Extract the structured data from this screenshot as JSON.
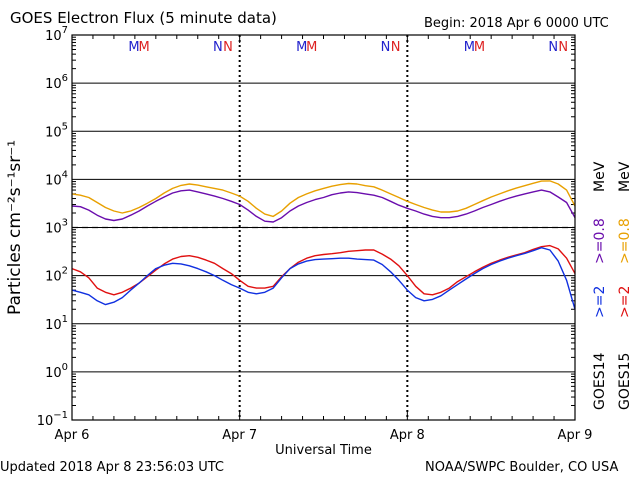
{
  "header": {
    "title": "GOES Electron Flux (5 minute data)",
    "begin": "Begin: 2018 Apr 6 0000 UTC"
  },
  "footer": {
    "updated": "Updated 2018 Apr  8 23:56:03 UTC",
    "credit": "NOAA/SWPC Boulder, CO USA"
  },
  "chart_data": {
    "type": "line",
    "xlabel": "Universal Time",
    "ylabel": "Particles cm⁻²s⁻¹sr⁻¹",
    "yscale": "log",
    "ylim": [
      0.1,
      10000000
    ],
    "xlim": [
      0,
      3
    ],
    "x_ticks": [
      {
        "x": 0,
        "label": "Apr 6"
      },
      {
        "x": 1,
        "label": "Apr 7"
      },
      {
        "x": 2,
        "label": "Apr 8"
      },
      {
        "x": 3,
        "label": "Apr 9"
      }
    ],
    "y_ticks": [
      {
        "exp": 7,
        "base": "10",
        "sup": "7"
      },
      {
        "exp": 6,
        "base": "10",
        "sup": "6"
      },
      {
        "exp": 5,
        "base": "10",
        "sup": "5"
      },
      {
        "exp": 4,
        "base": "10",
        "sup": "4"
      },
      {
        "exp": 3,
        "base": "10",
        "sup": "3"
      },
      {
        "exp": 2,
        "base": "10",
        "sup": "2"
      },
      {
        "exp": 1,
        "base": "10",
        "sup": "1"
      },
      {
        "exp": 0,
        "base": "10",
        "sup": "0"
      },
      {
        "exp": -1,
        "base": "10",
        "sup": "−1"
      }
    ],
    "threshold": 1000,
    "grid": true,
    "markers": [
      {
        "x": 0.37,
        "label": "M",
        "color": "#2222cc"
      },
      {
        "x": 0.43,
        "label": "M",
        "color": "#dd2222"
      },
      {
        "x": 0.87,
        "label": "N",
        "color": "#2222cc"
      },
      {
        "x": 0.93,
        "label": "N",
        "color": "#dd2222"
      },
      {
        "x": 1.37,
        "label": "M",
        "color": "#2222cc"
      },
      {
        "x": 1.43,
        "label": "M",
        "color": "#dd2222"
      },
      {
        "x": 1.87,
        "label": "N",
        "color": "#2222cc"
      },
      {
        "x": 1.93,
        "label": "N",
        "color": "#dd2222"
      },
      {
        "x": 2.37,
        "label": "M",
        "color": "#2222cc"
      },
      {
        "x": 2.43,
        "label": "M",
        "color": "#dd2222"
      },
      {
        "x": 2.87,
        "label": "N",
        "color": "#2222cc"
      },
      {
        "x": 2.93,
        "label": "N",
        "color": "#dd2222"
      }
    ],
    "series_labels": {
      "goes14": "GOES14",
      "goes15": "GOES15",
      "ge2_14": ">=2",
      "ge08_14": ">=0.8",
      "mev_14": "MeV",
      "ge2_15": ">=2",
      "ge08_15": ">=0.8",
      "mev_15": "MeV"
    },
    "series": [
      {
        "name": "GOES15 >=0.8 MeV",
        "color": "#e8a000",
        "x": [
          0,
          0.05,
          0.1,
          0.15,
          0.2,
          0.25,
          0.3,
          0.35,
          0.4,
          0.45,
          0.5,
          0.55,
          0.6,
          0.65,
          0.7,
          0.75,
          0.8,
          0.85,
          0.9,
          0.95,
          1.0,
          1.05,
          1.1,
          1.15,
          1.2,
          1.25,
          1.3,
          1.35,
          1.4,
          1.45,
          1.5,
          1.55,
          1.6,
          1.65,
          1.7,
          1.75,
          1.8,
          1.85,
          1.9,
          1.95,
          2.0,
          2.05,
          2.1,
          2.15,
          2.2,
          2.25,
          2.3,
          2.35,
          2.4,
          2.45,
          2.5,
          2.55,
          2.6,
          2.65,
          2.7,
          2.75,
          2.8,
          2.85,
          2.9,
          2.95,
          3.0
        ],
        "y": [
          5000,
          4700,
          4200,
          3300,
          2600,
          2200,
          2000,
          2200,
          2600,
          3200,
          4000,
          5200,
          6500,
          7500,
          8000,
          7600,
          7000,
          6500,
          6000,
          5200,
          4500,
          3500,
          2500,
          1900,
          1700,
          2200,
          3200,
          4200,
          5000,
          5800,
          6500,
          7200,
          7800,
          8200,
          8000,
          7400,
          7000,
          6000,
          5000,
          4200,
          3500,
          3000,
          2600,
          2300,
          2100,
          2100,
          2200,
          2500,
          3000,
          3600,
          4300,
          5000,
          5800,
          6600,
          7400,
          8300,
          9200,
          9300,
          8000,
          6000,
          2800
        ]
      },
      {
        "name": "GOES14 >=0.8 MeV",
        "color": "#6a0dad",
        "x": [
          0,
          0.05,
          0.1,
          0.15,
          0.2,
          0.25,
          0.3,
          0.35,
          0.4,
          0.45,
          0.5,
          0.55,
          0.6,
          0.65,
          0.7,
          0.75,
          0.8,
          0.85,
          0.9,
          0.95,
          1.0,
          1.05,
          1.1,
          1.15,
          1.2,
          1.25,
          1.3,
          1.35,
          1.4,
          1.45,
          1.5,
          1.55,
          1.6,
          1.65,
          1.7,
          1.75,
          1.8,
          1.85,
          1.9,
          1.95,
          2.0,
          2.05,
          2.1,
          2.15,
          2.2,
          2.25,
          2.3,
          2.35,
          2.4,
          2.45,
          2.5,
          2.55,
          2.6,
          2.65,
          2.7,
          2.75,
          2.8,
          2.85,
          2.9,
          2.95,
          3.0
        ],
        "y": [
          2800,
          2700,
          2300,
          1800,
          1500,
          1400,
          1500,
          1800,
          2200,
          2800,
          3500,
          4300,
          5200,
          5800,
          6000,
          5500,
          5000,
          4500,
          4000,
          3500,
          3000,
          2300,
          1700,
          1350,
          1300,
          1600,
          2200,
          2800,
          3300,
          3800,
          4200,
          4800,
          5200,
          5500,
          5300,
          5000,
          4700,
          4200,
          3500,
          2900,
          2500,
          2200,
          1900,
          1700,
          1600,
          1600,
          1700,
          1900,
          2200,
          2600,
          3000,
          3500,
          4000,
          4500,
          5000,
          5500,
          6000,
          5500,
          4300,
          3300,
          1600
        ]
      },
      {
        "name": "GOES15 >=2 MeV",
        "color": "#e01010",
        "x": [
          0,
          0.05,
          0.1,
          0.15,
          0.2,
          0.25,
          0.3,
          0.35,
          0.4,
          0.45,
          0.5,
          0.55,
          0.6,
          0.65,
          0.7,
          0.75,
          0.8,
          0.85,
          0.9,
          0.95,
          1.0,
          1.05,
          1.1,
          1.15,
          1.2,
          1.25,
          1.3,
          1.35,
          1.4,
          1.45,
          1.5,
          1.55,
          1.6,
          1.65,
          1.7,
          1.75,
          1.8,
          1.85,
          1.9,
          1.95,
          2.0,
          2.05,
          2.1,
          2.15,
          2.2,
          2.25,
          2.3,
          2.35,
          2.4,
          2.45,
          2.5,
          2.55,
          2.6,
          2.65,
          2.7,
          2.75,
          2.8,
          2.85,
          2.9,
          2.95,
          3.0
        ],
        "y": [
          140,
          120,
          90,
          55,
          45,
          40,
          45,
          55,
          70,
          95,
          130,
          175,
          220,
          250,
          260,
          240,
          210,
          180,
          140,
          110,
          80,
          60,
          55,
          55,
          60,
          95,
          140,
          190,
          230,
          260,
          275,
          285,
          300,
          320,
          330,
          340,
          340,
          280,
          220,
          160,
          100,
          60,
          42,
          40,
          45,
          55,
          75,
          95,
          120,
          150,
          180,
          210,
          240,
          270,
          300,
          350,
          400,
          420,
          360,
          230,
          110
        ]
      },
      {
        "name": "GOES14 >=2 MeV",
        "color": "#1030e0",
        "x": [
          0,
          0.05,
          0.1,
          0.15,
          0.2,
          0.25,
          0.3,
          0.35,
          0.4,
          0.45,
          0.5,
          0.55,
          0.6,
          0.65,
          0.7,
          0.75,
          0.8,
          0.85,
          0.9,
          0.95,
          1.0,
          1.05,
          1.1,
          1.15,
          1.2,
          1.25,
          1.3,
          1.35,
          1.4,
          1.45,
          1.5,
          1.55,
          1.6,
          1.65,
          1.7,
          1.75,
          1.8,
          1.85,
          1.9,
          1.95,
          2.0,
          2.05,
          2.1,
          2.15,
          2.2,
          2.25,
          2.3,
          2.35,
          2.4,
          2.45,
          2.5,
          2.55,
          2.6,
          2.65,
          2.7,
          2.75,
          2.8,
          2.85,
          2.9,
          2.95,
          3.0
        ],
        "y": [
          50,
          45,
          40,
          30,
          25,
          28,
          35,
          50,
          70,
          100,
          140,
          165,
          180,
          175,
          160,
          140,
          120,
          100,
          80,
          65,
          55,
          45,
          42,
          45,
          55,
          90,
          140,
          175,
          200,
          215,
          220,
          225,
          230,
          230,
          220,
          215,
          210,
          170,
          120,
          80,
          50,
          35,
          30,
          32,
          38,
          50,
          65,
          85,
          110,
          140,
          170,
          200,
          230,
          260,
          290,
          330,
          380,
          340,
          200,
          80,
          20
        ]
      }
    ]
  }
}
